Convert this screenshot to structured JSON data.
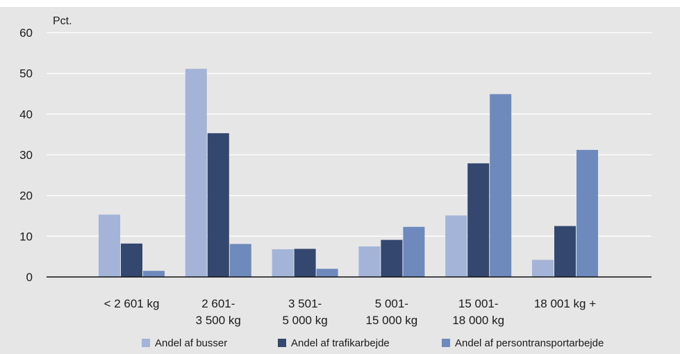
{
  "chart_data": {
    "type": "bar",
    "unit_label": "Pct.",
    "categories": [
      [
        "< 2 601 kg"
      ],
      [
        "2 601-",
        "3 500 kg"
      ],
      [
        "3 501-",
        "5 000 kg"
      ],
      [
        "5 001-",
        "15 000 kg"
      ],
      [
        "15 001-",
        "18 000 kg"
      ],
      [
        "18 001 kg +"
      ]
    ],
    "series": [
      {
        "name": "Andel af busser",
        "color": "#a3b4d8",
        "values": [
          15.3,
          51.1,
          6.8,
          7.5,
          15.1,
          4.2
        ]
      },
      {
        "name": "Andel af trafikarbejde",
        "color": "#34476e",
        "values": [
          8.2,
          35.3,
          6.9,
          9.1,
          27.9,
          12.5
        ]
      },
      {
        "name": "Andel af persontransportarbejde",
        "color": "#6e89bb",
        "values": [
          1.5,
          8.1,
          2.0,
          12.3,
          44.9,
          31.2
        ]
      }
    ],
    "ylim": [
      0,
      60
    ],
    "yticks": [
      0,
      10,
      20,
      30,
      40,
      50,
      60
    ],
    "grid": true,
    "legend_position": "bottom",
    "background": "#e6e6e6"
  }
}
